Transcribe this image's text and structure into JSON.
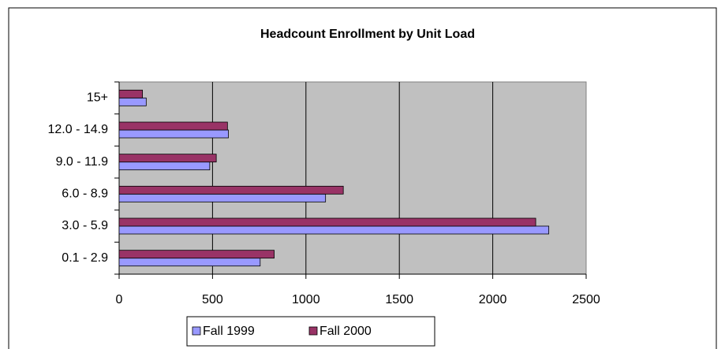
{
  "chart_data": {
    "type": "hbar",
    "title": "Headcount Enrollment by Unit Load",
    "categories": [
      "0.1 - 2.9",
      "3.0 - 5.9",
      "6.0 - 8.9",
      "9.0 - 11.9",
      "12.0 - 14.9",
      "15+"
    ],
    "series": [
      {
        "name": "Fall 1999",
        "color": "#9999ff",
        "values": [
          755,
          2300,
          1105,
          485,
          585,
          145
        ]
      },
      {
        "name": "Fall 2000",
        "color": "#993366",
        "values": [
          830,
          2230,
          1200,
          520,
          580,
          125
        ]
      }
    ],
    "xlim": [
      0,
      2500
    ],
    "xticks": [
      0,
      500,
      1000,
      1500,
      2000,
      2500
    ],
    "grid": true,
    "legend": "bottom"
  }
}
